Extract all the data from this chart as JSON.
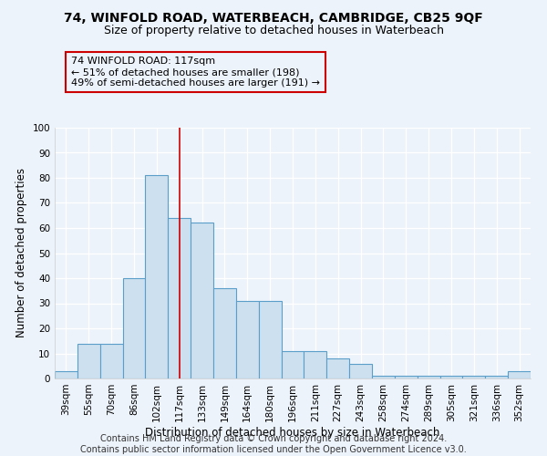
{
  "title": "74, WINFOLD ROAD, WATERBEACH, CAMBRIDGE, CB25 9QF",
  "subtitle": "Size of property relative to detached houses in Waterbeach",
  "xlabel": "Distribution of detached houses by size in Waterbeach",
  "ylabel": "Number of detached properties",
  "categories": [
    "39sqm",
    "55sqm",
    "70sqm",
    "86sqm",
    "102sqm",
    "117sqm",
    "133sqm",
    "149sqm",
    "164sqm",
    "180sqm",
    "196sqm",
    "211sqm",
    "227sqm",
    "243sqm",
    "258sqm",
    "274sqm",
    "289sqm",
    "305sqm",
    "321sqm",
    "336sqm",
    "352sqm"
  ],
  "values": [
    3,
    14,
    14,
    40,
    81,
    64,
    62,
    36,
    31,
    31,
    11,
    11,
    8,
    6,
    1,
    1,
    1,
    1,
    1,
    1,
    3
  ],
  "bar_color": "#cce0f0",
  "bar_edge_color": "#5b9ec9",
  "highlight_index": 5,
  "highlight_line_color": "#cc0000",
  "ylim": [
    0,
    100
  ],
  "yticks": [
    0,
    10,
    20,
    30,
    40,
    50,
    60,
    70,
    80,
    90,
    100
  ],
  "annotation_line1": "74 WINFOLD ROAD: 117sqm",
  "annotation_line2": "← 51% of detached houses are smaller (198)",
  "annotation_line3": "49% of semi-detached houses are larger (191) →",
  "annotation_box_color": "#cc0000",
  "footer_line1": "Contains HM Land Registry data © Crown copyright and database right 2024.",
  "footer_line2": "Contains public sector information licensed under the Open Government Licence v3.0.",
  "background_color": "#edf3fb",
  "grid_color": "#ffffff",
  "title_fontsize": 10,
  "subtitle_fontsize": 9,
  "axis_label_fontsize": 8.5,
  "tick_fontsize": 7.5,
  "annotation_fontsize": 8,
  "footer_fontsize": 7
}
